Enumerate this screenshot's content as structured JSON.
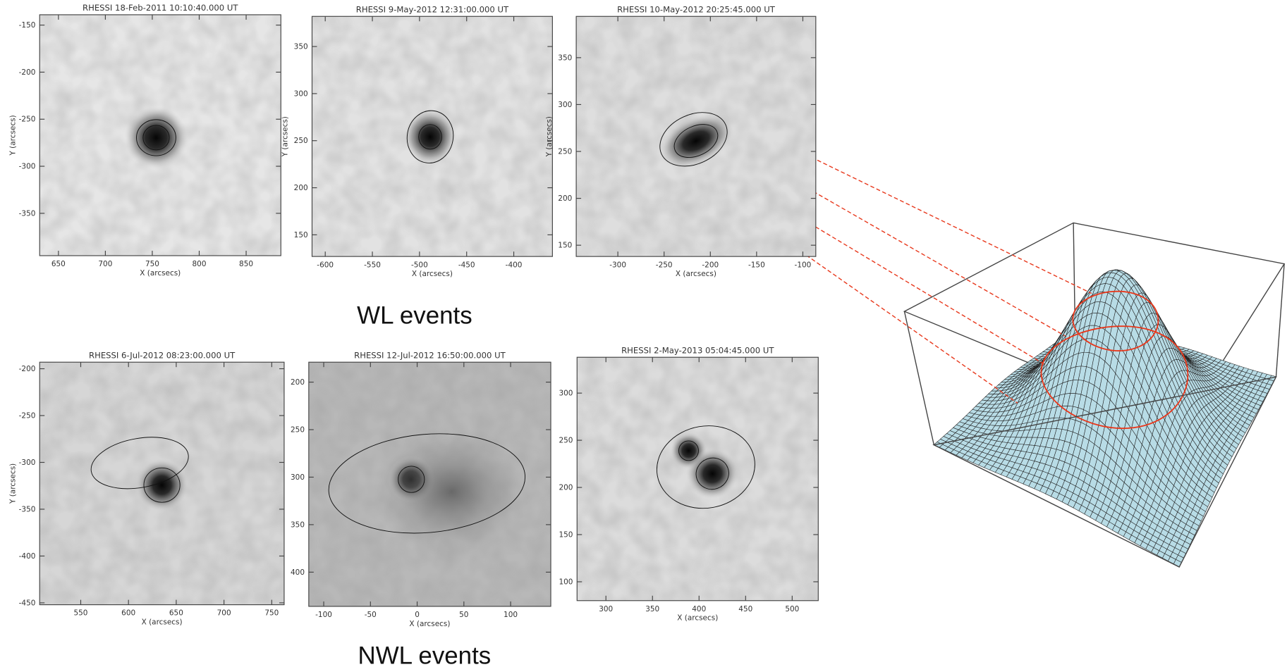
{
  "chart_data": [
    {
      "type": "image",
      "title": "RHESSI 18-Feb-2011 10:10:40.000 UT",
      "xlabel": "X (arcsecs)",
      "ylabel": "Y (arcsecs)",
      "xlim": [
        630,
        887
      ],
      "ylim": [
        -395,
        -139
      ],
      "xticks": [
        650,
        700,
        750,
        800,
        850
      ],
      "yticks": [
        -350,
        -300,
        -250,
        -200,
        -150
      ]
    },
    {
      "type": "image",
      "title": "RHESSI  9-May-2012 12:31:00.000 UT",
      "xlabel": "X (arcsecs)",
      "ylabel": "Y (arcsecs)",
      "xlim": [
        -614,
        -359
      ],
      "ylim": [
        127,
        382
      ],
      "xticks": [
        -600,
        -550,
        -500,
        -450,
        -400
      ],
      "yticks": [
        150,
        200,
        250,
        300,
        350
      ]
    },
    {
      "type": "image",
      "title": "RHESSI 10-May-2012 20:25:45.000 UT",
      "xlabel": "X (arcsecs)",
      "ylabel": "Y (arcsecs)",
      "xlim": [
        -345,
        -86
      ],
      "ylim": [
        138,
        394
      ],
      "xticks": [
        -300,
        -250,
        -200,
        -150,
        -100
      ],
      "yticks": [
        150,
        200,
        250,
        300,
        350
      ]
    },
    {
      "type": "image",
      "title": "RHESSI  6-Jul-2012 08:23:00.000 UT",
      "xlabel": "X (arcsecs)",
      "ylabel": "Y (arcsecs)",
      "xlim": [
        507,
        763
      ],
      "ylim": [
        -452,
        -193
      ],
      "xticks": [
        550,
        600,
        650,
        700,
        750
      ],
      "yticks": [
        -450,
        -400,
        -350,
        -300,
        -250,
        -200
      ]
    },
    {
      "type": "image",
      "title": "RHESSI 12-Jul-2012 16:50:00.000 UT",
      "xlabel": "X (arcsecs)",
      "xlim": [
        -116,
        143
      ],
      "ylim": [
        436,
        179
      ],
      "xticks": [
        -100,
        -50,
        0,
        50,
        100
      ],
      "yticks": [
        200,
        250,
        300,
        350,
        400
      ]
    },
    {
      "type": "image",
      "title": "RHESSI  2-May-2013 05:04:45.000 UT",
      "xlabel": "X (arcsecs)",
      "xlim": [
        269,
        528
      ],
      "ylim": [
        80,
        338
      ],
      "xticks": [
        300,
        350,
        400,
        450,
        500
      ],
      "yticks": [
        100,
        150,
        200,
        250,
        300
      ]
    }
  ],
  "labels": {
    "wl": "WL events",
    "nwl": "NWL events"
  }
}
